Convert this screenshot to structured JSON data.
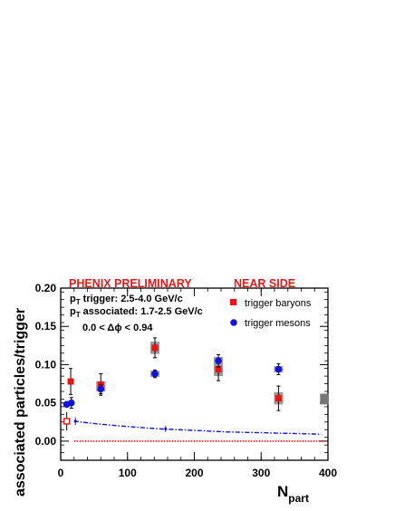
{
  "chart_data": {
    "type": "scatter",
    "title": "",
    "header_left": "PHENIX PRELIMINARY",
    "header_right": "NEAR SIDE",
    "xlabel_main": "N",
    "xlabel_sub": "part",
    "ylabel": "associated particles/trigger",
    "xlim": [
      0,
      400
    ],
    "ylim": [
      -0.025,
      0.2
    ],
    "x_ticks": [
      0,
      100,
      200,
      300,
      400
    ],
    "y_ticks": [
      0.0,
      0.05,
      0.1,
      0.15,
      0.2
    ],
    "x_tick_labels": [
      "0",
      "100",
      "200",
      "300",
      "400"
    ],
    "y_tick_labels": [
      "0.00",
      "0.05",
      "0.10",
      "0.15",
      "0.20"
    ],
    "annotations": {
      "trigger_p": "p",
      "trigger_sub": "T",
      "trigger_text": " trigger: 2.5-4.0 GeV/c",
      "assoc_p": "p",
      "assoc_sub": "T",
      "assoc_text": " associated: 1.7-2.5 GeV/c",
      "dphi": "0.0 < Δϕ < 0.94"
    },
    "legend": {
      "placement": "top-right"
    },
    "series": [
      {
        "name": "trigger baryons",
        "marker": "square",
        "color": "#ee1111",
        "points": [
          {
            "x": 15,
            "y": 0.078,
            "err": 0.017,
            "sys": 0.0
          },
          {
            "x": 60,
            "y": 0.074,
            "err": 0.014,
            "sys": 0.004
          },
          {
            "x": 141,
            "y": 0.122,
            "err": 0.013,
            "sys": 0.008
          },
          {
            "x": 236,
            "y": 0.094,
            "err": 0.015,
            "sys": 0.009
          },
          {
            "x": 326,
            "y": 0.056,
            "err": 0.016,
            "sys": 0.008
          }
        ],
        "open_points": [
          {
            "x": 9,
            "y": 0.026,
            "err": 0.012
          }
        ]
      },
      {
        "name": "trigger mesons",
        "marker": "circle",
        "color": "#1111dd",
        "points": [
          {
            "x": 9,
            "y": 0.048,
            "err": 0.0
          },
          {
            "x": 16,
            "y": 0.05,
            "err": 0.007
          },
          {
            "x": 60,
            "y": 0.068,
            "err": 0.006,
            "sys": 0.003
          },
          {
            "x": 141,
            "y": 0.088,
            "err": 0.005,
            "sys": 0.004
          },
          {
            "x": 236,
            "y": 0.105,
            "err": 0.008,
            "sys": 0.005
          },
          {
            "x": 326,
            "y": 0.094,
            "err": 0.007,
            "sys": 0.004
          }
        ]
      }
    ],
    "dashed_curve": {
      "color": "#1111dd",
      "x": [
        20,
        50,
        100,
        150,
        200,
        250,
        300,
        350,
        390
      ],
      "y": [
        0.026,
        0.023,
        0.019,
        0.016,
        0.014,
        0.012,
        0.011,
        0.01,
        0.009
      ],
      "err_points": [
        {
          "x": 22,
          "y": 0.026,
          "err": 0.005
        },
        {
          "x": 157,
          "y": 0.016,
          "err": 0.004
        }
      ]
    },
    "dotted_line": {
      "color": "#ee1111",
      "y": 0.0,
      "x_from": 20,
      "x_to": 395
    },
    "global_sys_box": {
      "x": 395,
      "y": 0.055,
      "half_height": 0.007,
      "color": "#777777"
    }
  }
}
